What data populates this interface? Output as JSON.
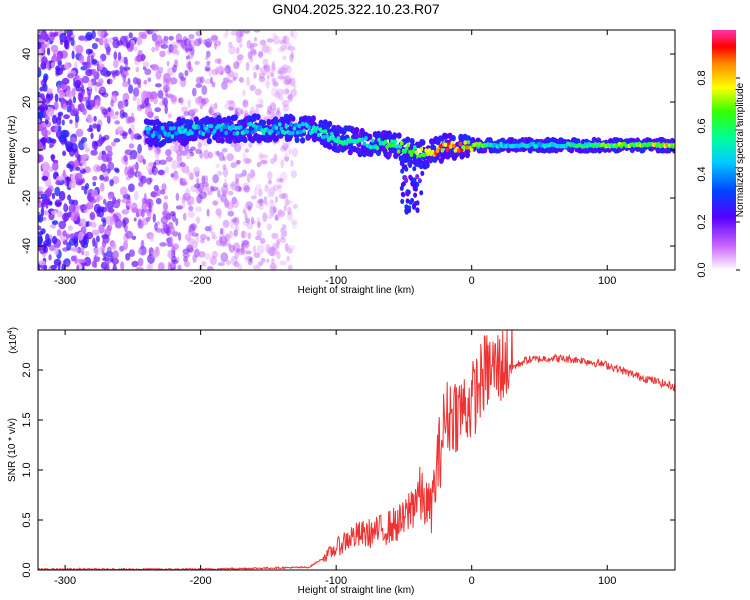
{
  "title": "GN04.2025.322.10.23.R07",
  "chart_data": [
    {
      "type": "heatmap",
      "xlabel": "Height of straight line (km)",
      "ylabel": "Frequency (Hz)",
      "xlim": [
        -320,
        150
      ],
      "ylim": [
        -50,
        50
      ],
      "xticks": [
        -300,
        -200,
        -100,
        0,
        100
      ],
      "yticks": [
        -40,
        -20,
        0,
        20,
        40
      ],
      "track": {
        "x": [
          -240,
          -200,
          -160,
          -120,
          -100,
          -80,
          -60,
          -45,
          -35,
          -20,
          -10,
          0,
          20,
          60,
          100,
          150
        ],
        "center_freq_hz": [
          7,
          8,
          9,
          9,
          5,
          3,
          2,
          0,
          -2,
          1,
          1,
          2,
          2,
          2,
          2,
          2
        ],
        "peak_amplitude": [
          0.45,
          0.5,
          0.5,
          0.5,
          0.55,
          0.55,
          0.6,
          0.7,
          0.75,
          0.9,
          0.9,
          0.75,
          0.5,
          0.5,
          0.7,
          0.8
        ]
      },
      "noise_region_x": [
        -320,
        -130
      ],
      "colorbar": {
        "label": "Normalized spectral amplitude",
        "range": [
          0.0,
          1.0
        ],
        "ticks": [
          "0.0",
          "0.2",
          "0.4",
          "0.6",
          "0.8"
        ]
      }
    },
    {
      "type": "line",
      "xlabel": "Height of straight line (km)",
      "ylabel": "SNR (10 * v/v)",
      "multiplier": "(x10",
      "multiplier_exp": "4",
      "xlim": [
        -320,
        150
      ],
      "ylim": [
        0,
        2.4
      ],
      "xticks": [
        -300,
        -200,
        -100,
        0,
        100
      ],
      "yticks": [
        "0.0",
        "0.5",
        "1.0",
        "1.5",
        "2.0"
      ],
      "series": [
        {
          "name": "SNR",
          "color": "#ee3333",
          "x": [
            -320,
            -200,
            -120,
            -105,
            -90,
            -70,
            -50,
            -40,
            -30,
            -20,
            -15,
            -10,
            0,
            10,
            20,
            40,
            60,
            80,
            100,
            120,
            150
          ],
          "values": [
            0.0,
            0.0,
            0.02,
            0.15,
            0.3,
            0.35,
            0.45,
            0.7,
            0.55,
            1.4,
            1.5,
            1.5,
            1.6,
            1.9,
            1.95,
            2.1,
            2.12,
            2.1,
            2.05,
            1.95,
            1.83
          ]
        }
      ]
    }
  ]
}
